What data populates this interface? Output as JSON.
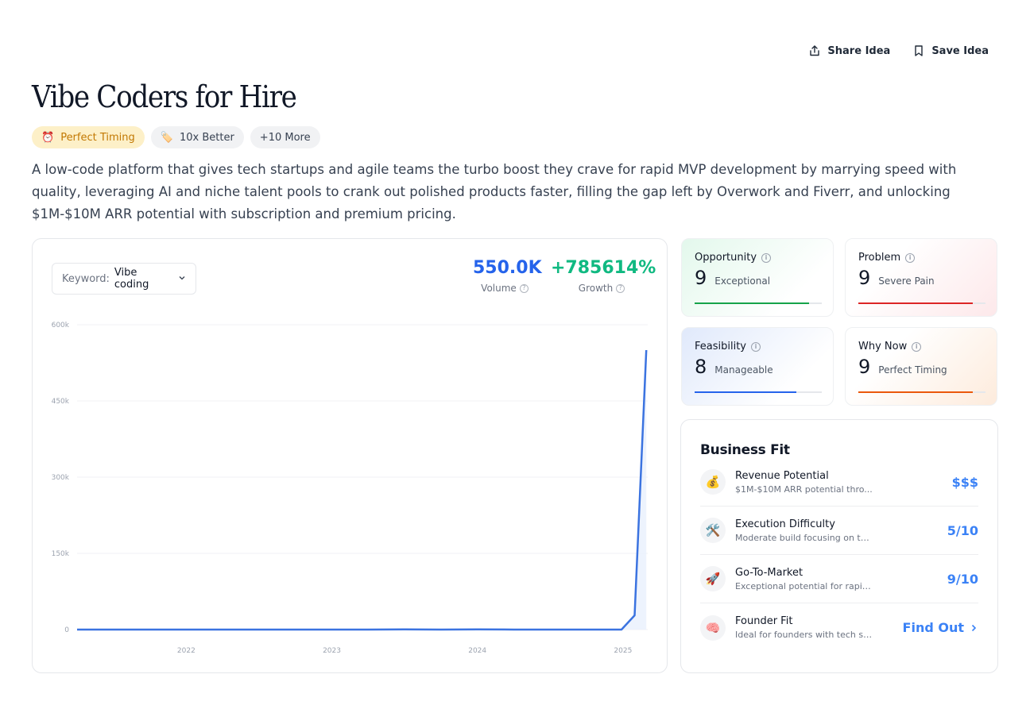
{
  "header": {
    "share_label": "Share Idea",
    "save_label": "Save Idea"
  },
  "title": "Vibe Coders for Hire",
  "badges": [
    {
      "icon": "⏰",
      "label": "Perfect Timing"
    },
    {
      "icon": "🏷️",
      "label": "10x Better"
    },
    {
      "label": "+10 More"
    }
  ],
  "description": "A low-code platform that gives tech startups and agile teams the turbo boost they crave for rapid MVP development by marrying speed with quality, leveraging AI and niche talent pools to crank out polished products faster, filling the gap left by Overwork and Fiverr, and unlocking $1M-$10M ARR potential with subscription and premium pricing.",
  "keyword": {
    "label": "Keyword:",
    "value": "Vibe coding"
  },
  "metrics": {
    "volume": {
      "value": "550.0K",
      "label": "Volume",
      "color": "#2563eb"
    },
    "growth": {
      "value": "+785614%",
      "label": "Growth",
      "color": "#10b981"
    }
  },
  "chart_data": {
    "type": "area",
    "y_tick_labels": [
      "600k",
      "450k",
      "300k",
      "150k",
      "0"
    ],
    "y_ticks": [
      600000,
      450000,
      300000,
      150000,
      0
    ],
    "ylim": [
      0,
      600000
    ],
    "x_tick_labels": [
      "2022",
      "2023",
      "2024",
      "2025"
    ],
    "x_ticks": [
      2022,
      2023,
      2024,
      2025
    ],
    "xlim": [
      2021.25,
      2025.17
    ],
    "line_color": "#3b73e0",
    "series": [
      {
        "x": [
          2021.25,
          2021.5,
          2021.75,
          2022.0,
          2022.25,
          2022.5,
          2022.75,
          2023.0,
          2023.25,
          2023.5,
          2023.75,
          2024.0,
          2024.25,
          2024.5,
          2024.75,
          2024.9,
          2024.99,
          2025.08,
          2025.16
        ],
        "y": [
          0,
          0,
          0,
          0,
          0,
          0,
          0,
          0,
          0,
          500,
          0,
          500,
          0,
          0,
          0,
          0,
          0,
          28000,
          550000
        ]
      }
    ]
  },
  "scores": [
    {
      "name": "Opportunity",
      "score": "9",
      "label": "Exceptional",
      "fraction": 0.9,
      "color": "#16a34a"
    },
    {
      "name": "Problem",
      "score": "9",
      "label": "Severe Pain",
      "fraction": 0.9,
      "color": "#dc2626"
    },
    {
      "name": "Feasibility",
      "score": "8",
      "label": "Manageable",
      "fraction": 0.8,
      "color": "#2563eb"
    },
    {
      "name": "Why Now",
      "score": "9",
      "label": "Perfect Timing",
      "fraction": 0.9,
      "color": "#ea580c"
    }
  ],
  "business_fit": {
    "title": "Business Fit",
    "rows": [
      {
        "icon": "💰",
        "name": "Revenue Potential",
        "desc": "$1M-$10M ARR potential thro...",
        "value": "$$$"
      },
      {
        "icon": "🛠️",
        "name": "Execution Difficulty",
        "desc": "Moderate build focusing on tal...",
        "value": "5/10"
      },
      {
        "icon": "🚀",
        "name": "Go-To-Market",
        "desc": "Exceptional potential for rapid ...",
        "value": "9/10"
      },
      {
        "icon": "🧠",
        "name": "Founder Fit",
        "desc": "Ideal for founders with tech st...",
        "value": "Find Out"
      }
    ]
  }
}
